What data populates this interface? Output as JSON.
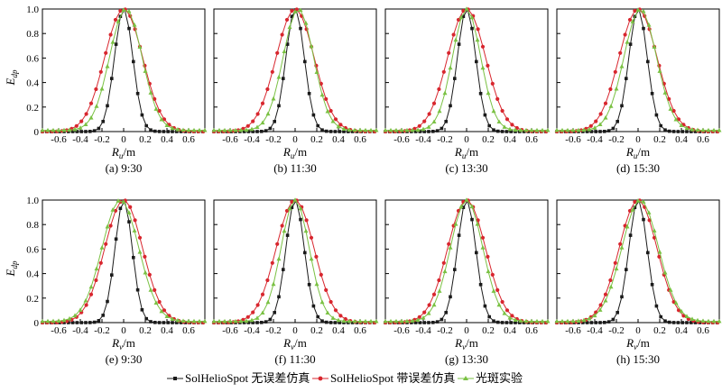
{
  "figure": {
    "y_label_main": "E",
    "y_label_sub": "dp",
    "legend": [
      {
        "label": "SolHelioSpot 无误差仿真",
        "color": "#1a1a1a",
        "marker": "square"
      },
      {
        "label": "SolHelioSpot 带误差仿真",
        "color": "#d8262e",
        "marker": "circle"
      },
      {
        "label": "光斑实验",
        "color": "#7ac143",
        "marker": "triangle"
      }
    ]
  },
  "chart_data": [
    {
      "type": "line",
      "caption": "(a) 9:30",
      "xlabel_main": "R",
      "xlabel_sub": "u",
      "xlabel_unit": "/m",
      "xlim": [
        -0.75,
        0.75
      ],
      "ylim": [
        0,
        1
      ],
      "xticks": [
        -0.6,
        -0.4,
        -0.2,
        0,
        0.2,
        0.4,
        0.6
      ],
      "yticks": [
        0,
        0.2,
        0.4,
        0.6,
        0.8,
        1.0
      ],
      "ytick_labels": [
        "0",
        "0.2",
        "0.4",
        "0.6",
        "0.8",
        "1.0"
      ],
      "series": [
        {
          "name": "SolHelioSpot 无误差仿真",
          "center": 0.0,
          "sigma": 0.085,
          "spacing": 0.04,
          "offset": 0.0
        },
        {
          "name": "SolHelioSpot 带误差仿真",
          "center": 0.0,
          "sigma": 0.175,
          "spacing": 0.045,
          "offset": 0.0
        },
        {
          "name": "光斑实验",
          "center": 0.02,
          "sigma": 0.15,
          "spacing": 0.05,
          "offset": 0.01
        }
      ]
    },
    {
      "type": "line",
      "caption": "(b) 11:30",
      "xlabel_main": "R",
      "xlabel_sub": "u",
      "xlabel_unit": "/m",
      "xlim": [
        -0.75,
        0.75
      ],
      "ylim": [
        0,
        1
      ],
      "xticks": [
        -0.6,
        -0.4,
        -0.2,
        0,
        0.2,
        0.4,
        0.6
      ],
      "yticks": [
        0,
        0.2,
        0.4,
        0.6,
        0.8,
        1.0
      ],
      "ytick_labels": [
        "",
        "",
        "",
        "",
        "",
        ""
      ],
      "series": [
        {
          "name": "SolHelioSpot 无误差仿真",
          "center": 0.0,
          "sigma": 0.085,
          "spacing": 0.04,
          "offset": 0.0
        },
        {
          "name": "SolHelioSpot 带误差仿真",
          "center": 0.0,
          "sigma": 0.175,
          "spacing": 0.045,
          "offset": 0.0
        },
        {
          "name": "光斑实验",
          "center": 0.03,
          "sigma": 0.14,
          "spacing": 0.05,
          "offset": 0.01
        }
      ]
    },
    {
      "type": "line",
      "caption": "(c) 13:30",
      "xlabel_main": "R",
      "xlabel_sub": "u",
      "xlabel_unit": "/m",
      "xlim": [
        -0.75,
        0.75
      ],
      "ylim": [
        0,
        1
      ],
      "xticks": [
        -0.6,
        -0.4,
        -0.2,
        0,
        0.2,
        0.4,
        0.6
      ],
      "yticks": [
        0,
        0.2,
        0.4,
        0.6,
        0.8,
        1.0
      ],
      "ytick_labels": [
        "",
        "",
        "",
        "",
        "",
        ""
      ],
      "series": [
        {
          "name": "SolHelioSpot 无误差仿真",
          "center": 0.0,
          "sigma": 0.085,
          "spacing": 0.04,
          "offset": 0.0
        },
        {
          "name": "SolHelioSpot 带误差仿真",
          "center": 0.0,
          "sigma": 0.175,
          "spacing": 0.045,
          "offset": 0.0
        },
        {
          "name": "光斑实验",
          "center": 0.0,
          "sigma": 0.13,
          "spacing": 0.05,
          "offset": 0.01
        }
      ]
    },
    {
      "type": "line",
      "caption": "(d) 15:30",
      "xlabel_main": "R",
      "xlabel_sub": "u",
      "xlabel_unit": "/m",
      "xlim": [
        -0.75,
        0.75
      ],
      "ylim": [
        0,
        1
      ],
      "xticks": [
        -0.6,
        -0.4,
        -0.2,
        0,
        0.2,
        0.4,
        0.6
      ],
      "yticks": [
        0,
        0.2,
        0.4,
        0.6,
        0.8,
        1.0
      ],
      "ytick_labels": [
        "",
        "",
        "",
        "",
        "",
        ""
      ],
      "series": [
        {
          "name": "SolHelioSpot 无误差仿真",
          "center": 0.0,
          "sigma": 0.085,
          "spacing": 0.04,
          "offset": 0.0
        },
        {
          "name": "SolHelioSpot 带误差仿真",
          "center": 0.0,
          "sigma": 0.175,
          "spacing": 0.045,
          "offset": 0.0
        },
        {
          "name": "光斑实验",
          "center": 0.02,
          "sigma": 0.15,
          "spacing": 0.05,
          "offset": 0.01
        }
      ]
    },
    {
      "type": "line",
      "caption": "(e) 9:30",
      "xlabel_main": "R",
      "xlabel_sub": "v",
      "xlabel_unit": "/m",
      "xlim": [
        -0.75,
        0.75
      ],
      "ylim": [
        0,
        1
      ],
      "xticks": [
        -0.6,
        -0.4,
        -0.2,
        0,
        0.2,
        0.4,
        0.6
      ],
      "yticks": [
        0,
        0.2,
        0.4,
        0.6,
        0.8,
        1.0
      ],
      "ytick_labels": [
        "0",
        "0.2",
        "0.4",
        "0.6",
        "0.8",
        "1.0"
      ],
      "series": [
        {
          "name": "SolHelioSpot 无误差仿真",
          "center": 0.0,
          "sigma": 0.08,
          "spacing": 0.04,
          "offset": 0.0
        },
        {
          "name": "SolHelioSpot 带误差仿真",
          "center": 0.0,
          "sigma": 0.175,
          "spacing": 0.045,
          "offset": 0.0
        },
        {
          "name": "光斑实验",
          "center": -0.03,
          "sigma": 0.17,
          "spacing": 0.05,
          "offset": 0.01
        }
      ]
    },
    {
      "type": "line",
      "caption": "(f) 11:30",
      "xlabel_main": "R",
      "xlabel_sub": "v",
      "xlabel_unit": "/m",
      "xlim": [
        -0.75,
        0.75
      ],
      "ylim": [
        0,
        1
      ],
      "xticks": [
        -0.6,
        -0.4,
        -0.2,
        0,
        0.2,
        0.4,
        0.6
      ],
      "yticks": [
        0,
        0.2,
        0.4,
        0.6,
        0.8,
        1.0
      ],
      "ytick_labels": [
        "",
        "",
        "",
        "",
        "",
        ""
      ],
      "series": [
        {
          "name": "SolHelioSpot 无误差仿真",
          "center": 0.0,
          "sigma": 0.085,
          "spacing": 0.04,
          "offset": 0.0
        },
        {
          "name": "SolHelioSpot 带误差仿真",
          "center": 0.0,
          "sigma": 0.175,
          "spacing": 0.045,
          "offset": 0.0
        },
        {
          "name": "光斑实验",
          "center": 0.0,
          "sigma": 0.13,
          "spacing": 0.05,
          "offset": 0.01
        }
      ]
    },
    {
      "type": "line",
      "caption": "(g) 13:30",
      "xlabel_main": "R",
      "xlabel_sub": "v",
      "xlabel_unit": "/m",
      "xlim": [
        -0.75,
        0.75
      ],
      "ylim": [
        0,
        1
      ],
      "xticks": [
        -0.6,
        -0.4,
        -0.2,
        0,
        0.2,
        0.4,
        0.6
      ],
      "yticks": [
        0,
        0.2,
        0.4,
        0.6,
        0.8,
        1.0
      ],
      "ytick_labels": [
        "",
        "",
        "",
        "",
        "",
        ""
      ],
      "series": [
        {
          "name": "SolHelioSpot 无误差仿真",
          "center": 0.0,
          "sigma": 0.085,
          "spacing": 0.04,
          "offset": 0.0
        },
        {
          "name": "SolHelioSpot 带误差仿真",
          "center": 0.0,
          "sigma": 0.175,
          "spacing": 0.045,
          "offset": 0.0
        },
        {
          "name": "光斑实验",
          "center": 0.0,
          "sigma": 0.15,
          "spacing": 0.05,
          "offset": 0.01
        }
      ]
    },
    {
      "type": "line",
      "caption": "(h) 15:30",
      "xlabel_main": "R",
      "xlabel_sub": "v",
      "xlabel_unit": "/m",
      "xlim": [
        -0.75,
        0.75
      ],
      "ylim": [
        0,
        1
      ],
      "xticks": [
        -0.6,
        -0.4,
        -0.2,
        0,
        0.2,
        0.4,
        0.6
      ],
      "yticks": [
        0,
        0.2,
        0.4,
        0.6,
        0.8,
        1.0
      ],
      "ytick_labels": [
        "",
        "",
        "",
        "",
        "",
        ""
      ],
      "series": [
        {
          "name": "SolHelioSpot 无误差仿真",
          "center": 0.0,
          "sigma": 0.085,
          "spacing": 0.04,
          "offset": 0.0
        },
        {
          "name": "SolHelioSpot 带误差仿真",
          "center": 0.0,
          "sigma": 0.175,
          "spacing": 0.045,
          "offset": 0.0
        },
        {
          "name": "光斑实验",
          "center": 0.02,
          "sigma": 0.17,
          "spacing": 0.05,
          "offset": 0.01
        }
      ]
    }
  ]
}
